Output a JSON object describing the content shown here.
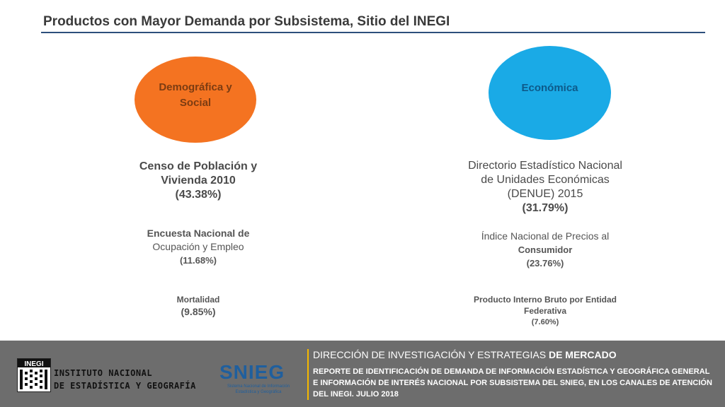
{
  "slide": {
    "title": "Productos con Mayor Demanda por Subsistema, Sitio del INEGI"
  },
  "left": {
    "ellipse_label": "Demográfica y Social",
    "color": "#f47321",
    "p1_name_l1": "Censo de Población y",
    "p1_name_l2": "Vivienda 2010",
    "p1_pct": "(43.38%)",
    "p2_name_l1": "Encuesta Nacional de",
    "p2_name_l2": "Ocupación y Empleo",
    "p2_pct": "(11.68%)",
    "p3_name": "Mortalidad",
    "p3_pct": "(9.85%)"
  },
  "right": {
    "ellipse_label": "Económica",
    "color": "#1aaae6",
    "p1_name_l1": "Directorio Estadístico Nacional",
    "p1_name_l2": "de Unidades Económicas",
    "p1_name_l3": "(DENUE) 2015",
    "p1_pct": "(31.79%)",
    "p2_name_l1": "Índice Nacional de Precios al",
    "p2_name_l2": "Consumidor",
    "p2_pct": "(23.76%)",
    "p3_name_l1": "Producto Interno Bruto por Entidad",
    "p3_name_l2": "Federativa",
    "p3_pct": "(7.60%)"
  },
  "footer": {
    "inst_logo": "INEGI",
    "inst_line1": "INSTITUTO NACIONAL",
    "inst_line2": "DE ESTADÍSTICA Y GEOGRAFÍA",
    "snieg_word": "SNIEG",
    "snieg_sub": "Sistema Nacional de Información Estadística y Geográfica",
    "direction_a": "DIRECCIÓN DE INVESTIGACIÓN Y ESTRATEGIAS",
    "direction_b": "DE MERCADO",
    "report": "REPORTE DE IDENTIFICACIÓN DE DEMANDA DE INFORMACIÓN ESTADÍSTICA Y GEOGRÁFICA GENERAL E INFORMACIÓN DE INTERÉS NACIONAL POR SUBSISTEMA DEL SNIEG, EN LOS CANALES DE ATENCIÓN DEL INEGI. JULIO 2018"
  }
}
